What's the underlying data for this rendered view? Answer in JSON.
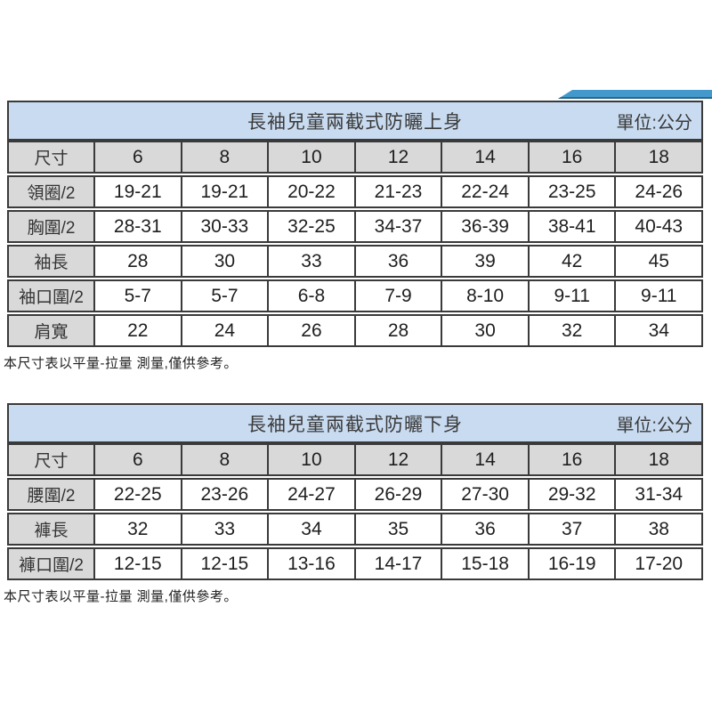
{
  "colors": {
    "accent_band": "#4399cc",
    "accent_band_edge": "#2e6486",
    "title_bg": "#c9dbf0",
    "cell_gray": "#d9d9d9",
    "border": "#3a3a3a"
  },
  "tables": [
    {
      "title": "長袖兒童兩截式防曬上身",
      "unit": "單位:公分",
      "header": [
        "尺寸",
        "6",
        "8",
        "10",
        "12",
        "14",
        "16",
        "18"
      ],
      "rows": [
        {
          "label": "領圈/2",
          "values": [
            "19-21",
            "19-21",
            "20-22",
            "21-23",
            "22-24",
            "23-25",
            "24-26"
          ]
        },
        {
          "label": "胸圍/2",
          "values": [
            "28-31",
            "30-33",
            "32-25",
            "34-37",
            "36-39",
            "38-41",
            "40-43"
          ]
        },
        {
          "label": "袖長",
          "values": [
            "28",
            "30",
            "33",
            "36",
            "39",
            "42",
            "45"
          ]
        },
        {
          "label": "袖口圍/2",
          "values": [
            "5-7",
            "5-7",
            "6-8",
            "7-9",
            "8-10",
            "9-11",
            "9-11"
          ]
        },
        {
          "label": "肩寬",
          "values": [
            "22",
            "24",
            "26",
            "28",
            "30",
            "32",
            "34"
          ]
        }
      ],
      "note": "本尺寸表以平量-拉量 測量,僅供參考。"
    },
    {
      "title": "長袖兒童兩截式防曬下身",
      "unit": "單位:公分",
      "header": [
        "尺寸",
        "6",
        "8",
        "10",
        "12",
        "14",
        "16",
        "18"
      ],
      "rows": [
        {
          "label": "腰圍/2",
          "values": [
            "22-25",
            "23-26",
            "24-27",
            "26-29",
            "27-30",
            "29-32",
            "31-34"
          ]
        },
        {
          "label": "褲長",
          "values": [
            "32",
            "33",
            "34",
            "35",
            "36",
            "37",
            "38"
          ]
        },
        {
          "label": "褲口圍/2",
          "values": [
            "12-15",
            "12-15",
            "13-16",
            "14-17",
            "15-18",
            "16-19",
            "17-20"
          ]
        }
      ],
      "note": "本尺寸表以平量-拉量 測量,僅供參考。"
    }
  ]
}
